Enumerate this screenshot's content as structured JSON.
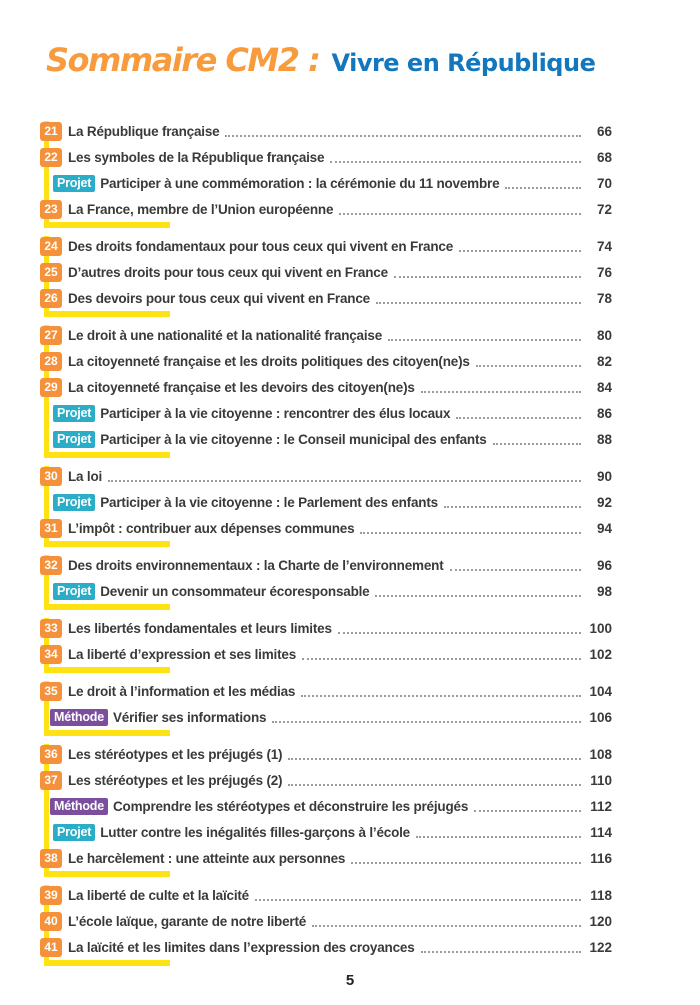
{
  "header": {
    "title_main": "Sommaire CM2 :",
    "title_sub": "Vivre en République"
  },
  "footer": {
    "page_number": "5"
  },
  "badges": {
    "projet": "Projet",
    "methode": "Méthode"
  },
  "colors": {
    "title_orange": "#F89B3C",
    "title_blue": "#1377BD",
    "badge_orange": "#F5913A",
    "projet_teal": "#2BADC7",
    "methode_purple": "#7B4F9D",
    "highlight_yellow": "#FFE212",
    "text_ink": "#3A3A39",
    "leader_dots": "#9B9B9B"
  },
  "toc": {
    "groups": [
      {
        "rows": [
          {
            "type": "num",
            "num": "21",
            "title": "La République française",
            "page": "66"
          },
          {
            "type": "num",
            "num": "22",
            "title": "Les symboles de la République française",
            "page": "68"
          },
          {
            "type": "projet",
            "title": "Participer à une commémoration : la cérémonie du 11 novembre",
            "page": "70"
          },
          {
            "type": "num",
            "num": "23",
            "title": "La France, membre de l’Union européenne",
            "page": "72"
          }
        ]
      },
      {
        "rows": [
          {
            "type": "num",
            "num": "24",
            "title": "Des droits fondamentaux pour tous ceux qui vivent en France",
            "page": "74"
          },
          {
            "type": "num",
            "num": "25",
            "title": "D’autres droits pour tous ceux qui vivent en France",
            "page": "76"
          },
          {
            "type": "num",
            "num": "26",
            "title": "Des devoirs pour tous ceux qui vivent en France",
            "page": "78"
          }
        ]
      },
      {
        "rows": [
          {
            "type": "num",
            "num": "27",
            "title": "Le droit à une nationalité et la nationalité française",
            "page": "80"
          },
          {
            "type": "num",
            "num": "28",
            "title": "La citoyenneté française et les droits politiques des citoyen(ne)s",
            "page": "82"
          },
          {
            "type": "num",
            "num": "29",
            "title": "La citoyenneté française et les devoirs des citoyen(ne)s",
            "page": "84"
          },
          {
            "type": "projet",
            "title": "Participer à la vie citoyenne : rencontrer des élus locaux",
            "page": "86"
          },
          {
            "type": "projet",
            "title": "Participer à la vie citoyenne : le Conseil municipal des enfants",
            "page": "88"
          }
        ]
      },
      {
        "rows": [
          {
            "type": "num",
            "num": "30",
            "title": "La loi",
            "page": "90"
          },
          {
            "type": "projet",
            "title": "Participer à la vie citoyenne : le Parlement des enfants",
            "page": "92"
          },
          {
            "type": "num",
            "num": "31",
            "title": "L’impôt : contribuer aux dépenses communes",
            "page": "94"
          }
        ]
      },
      {
        "rows": [
          {
            "type": "num",
            "num": "32",
            "title": "Des droits environnementaux : la Charte de l’environnement",
            "page": "96"
          },
          {
            "type": "projet",
            "title": "Devenir un consommateur écoresponsable",
            "page": "98"
          }
        ]
      },
      {
        "rows": [
          {
            "type": "num",
            "num": "33",
            "title": "Les libertés fondamentales et leurs limites",
            "page": "100"
          },
          {
            "type": "num",
            "num": "34",
            "title": "La liberté d’expression et ses limites",
            "page": "102"
          }
        ]
      },
      {
        "rows": [
          {
            "type": "num",
            "num": "35",
            "title": "Le droit à l’information et les médias",
            "page": "104"
          },
          {
            "type": "methode",
            "title": "Vérifier ses informations",
            "page": "106"
          }
        ]
      },
      {
        "rows": [
          {
            "type": "num",
            "num": "36",
            "title": "Les stéréotypes et les préjugés (1)",
            "page": "108"
          },
          {
            "type": "num",
            "num": "37",
            "title": "Les stéréotypes et les préjugés (2)",
            "page": "110"
          },
          {
            "type": "methode",
            "title": "Comprendre les stéréotypes et déconstruire les préjugés",
            "page": "112"
          },
          {
            "type": "projet",
            "title": "Lutter contre les inégalités filles-garçons à l’école",
            "page": "114"
          },
          {
            "type": "num",
            "num": "38",
            "title": "Le harcèlement : une atteinte aux personnes",
            "page": "116"
          }
        ]
      },
      {
        "rows": [
          {
            "type": "num",
            "num": "39",
            "title": "La liberté de culte et la laïcité",
            "page": "118"
          },
          {
            "type": "num",
            "num": "40",
            "title": "L’école laïque, garante de notre liberté",
            "page": "120"
          },
          {
            "type": "num",
            "num": "41",
            "title": "La laïcité et les limites dans l’expression des croyances",
            "page": "122"
          }
        ]
      }
    ]
  }
}
